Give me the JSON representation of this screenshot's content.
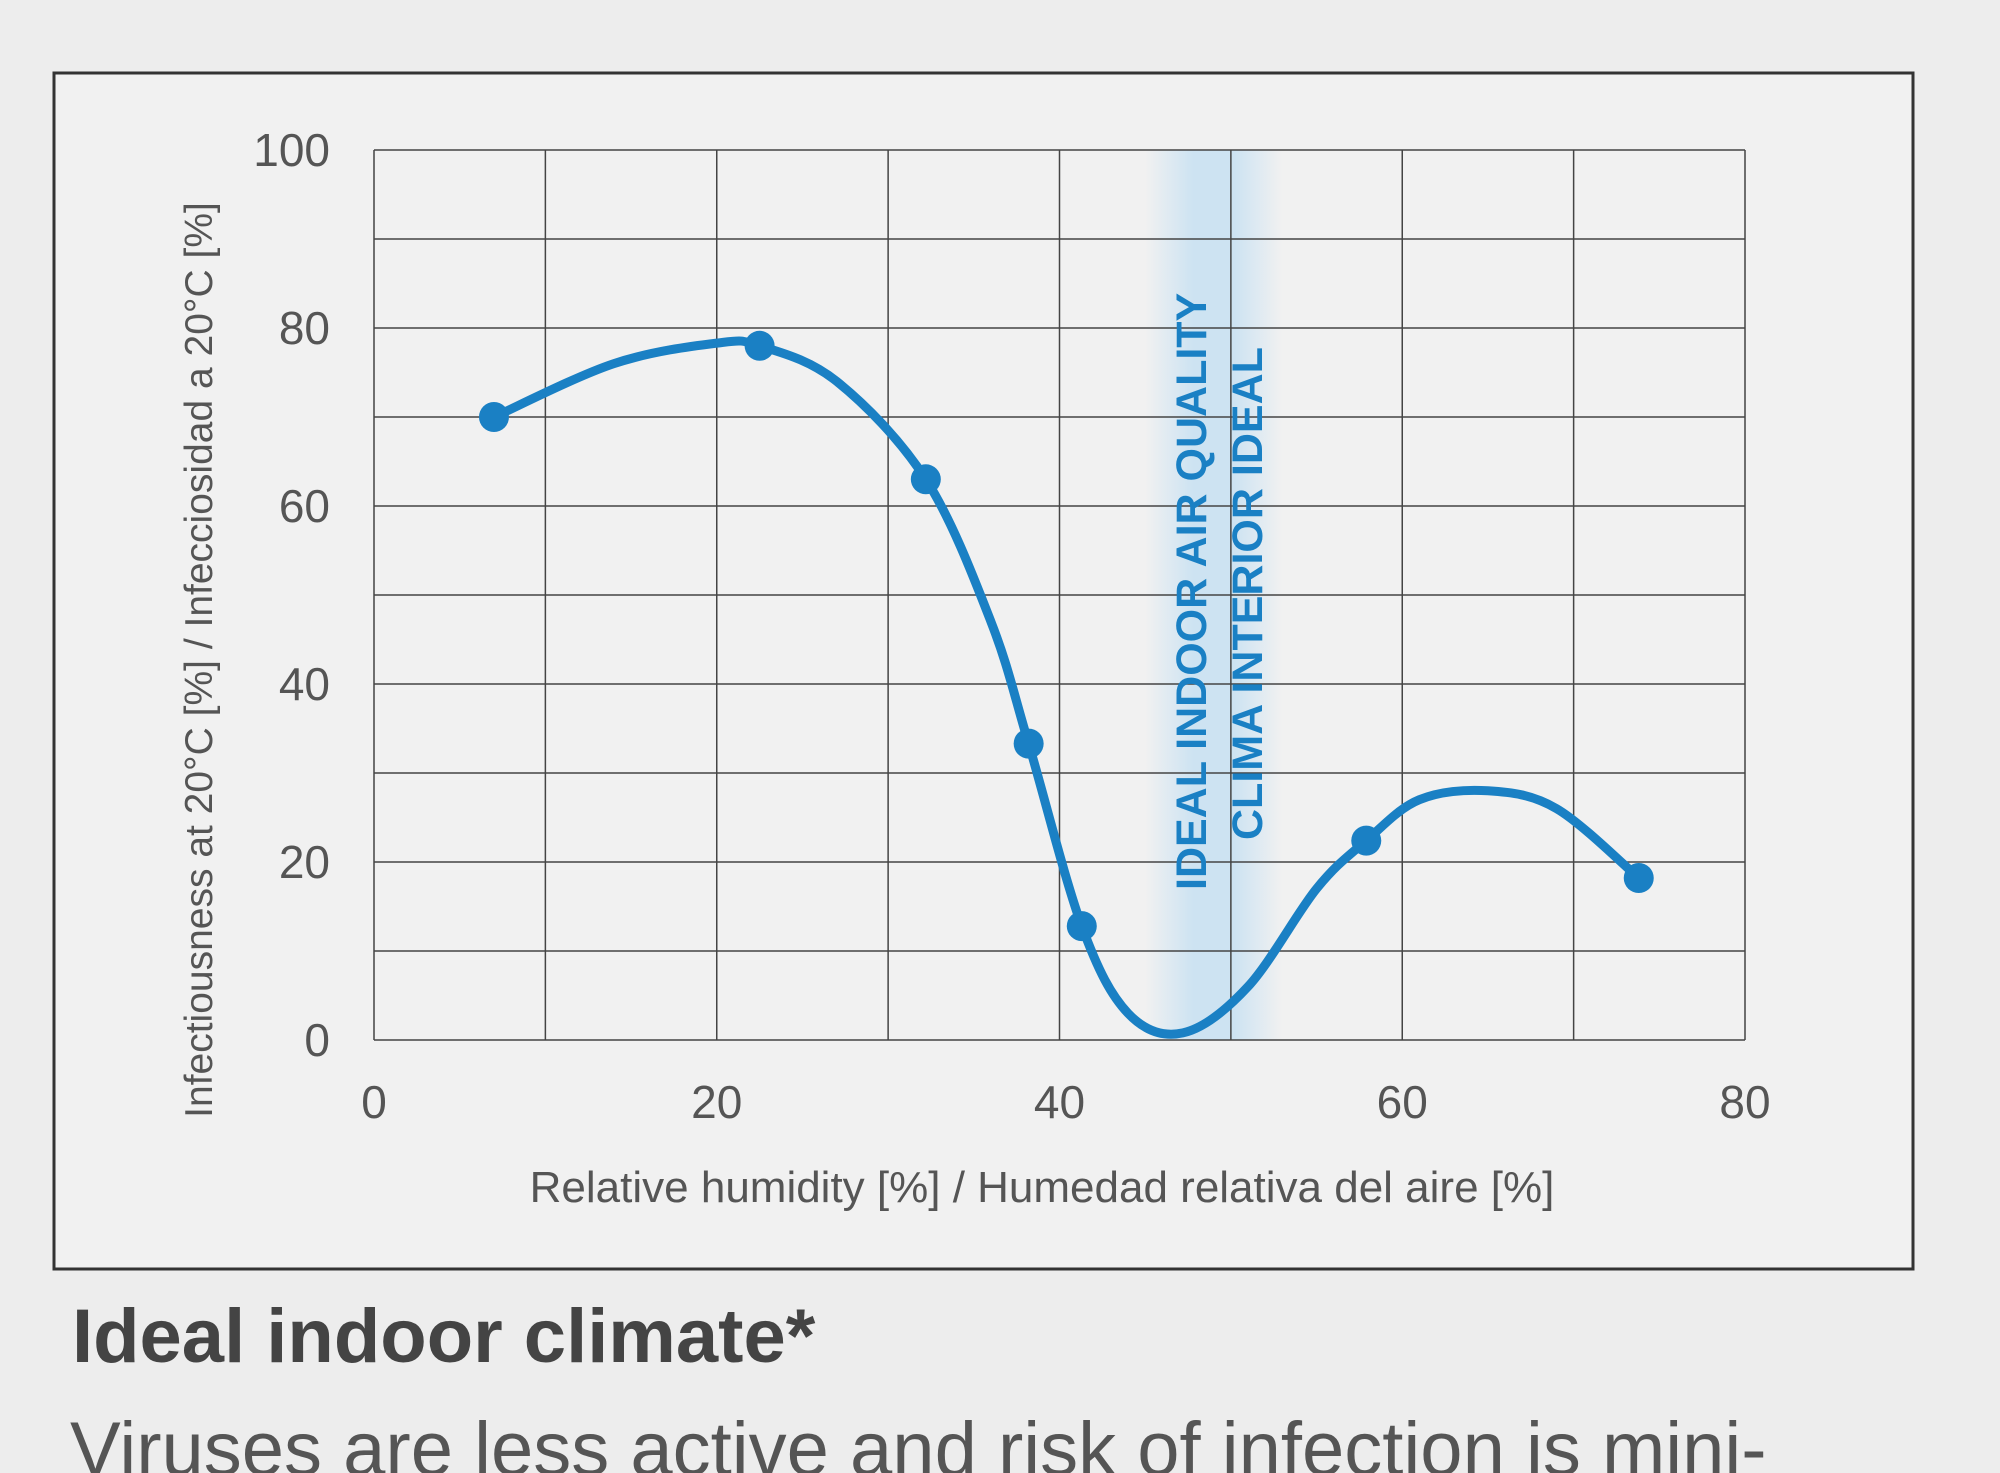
{
  "chart_data": {
    "type": "line",
    "x_label": "Relative humidity [%] / Humedad relativa del aire [%]",
    "y_label": "Infectiousness at 20°C [%] / Infecciosidad a 20°C [%]",
    "annotations": [
      "IDEAL INDOOR AIR QUALITY",
      "CLIMA INTERIOR IDEAL"
    ],
    "band": [
      45,
      53
    ],
    "color": "#1a80c4",
    "curve": {
      "x": [
        7,
        14,
        20,
        22.5,
        27,
        32.2,
        36,
        38.2,
        41.3,
        44,
        47.2,
        51,
        55,
        57.9,
        61,
        65,
        69,
        73.8
      ],
      "values": [
        70,
        76,
        78.3,
        78,
        74,
        63,
        47,
        33.3,
        12.8,
        3,
        0.8,
        6,
        17,
        22.4,
        27,
        28,
        26,
        18.2
      ]
    },
    "points": {
      "x": [
        7,
        22.5,
        32.2,
        38.2,
        41.3,
        57.9,
        73.8
      ],
      "values": [
        70,
        78,
        63,
        33.3,
        12.8,
        22.4,
        18.2
      ]
    },
    "xlim": [
      0,
      80
    ],
    "ylim": [
      0,
      100
    ],
    "xticks": [
      0,
      20,
      40,
      60,
      80
    ],
    "yticks": [
      0,
      20,
      40,
      60,
      80,
      100
    ],
    "xgrid": [
      10,
      30,
      50,
      70
    ],
    "ygrid": [
      10,
      30,
      50,
      70,
      90
    ],
    "grid": true
  },
  "caption": {
    "title": "Ideal indoor climate*",
    "text": "Viruses are less active and risk of infection is mini-"
  }
}
